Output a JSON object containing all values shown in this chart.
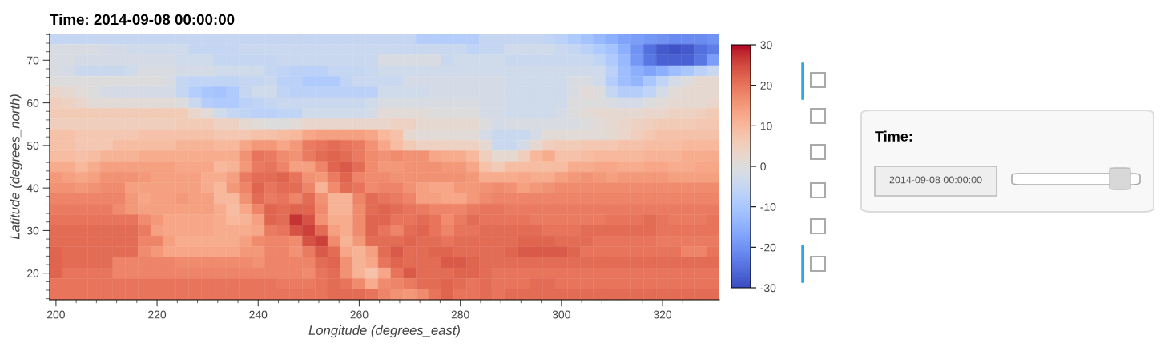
{
  "chart_data": {
    "type": "heatmap",
    "title": "Time: 2014-09-08 00:00:00",
    "xlabel": "Longitude (degrees_east)",
    "ylabel": "Latitude (degrees_north)",
    "x": [
      200,
      202.5,
      205,
      207.5,
      210,
      212.5,
      215,
      217.5,
      220,
      222.5,
      225,
      227.5,
      230,
      232.5,
      235,
      237.5,
      240,
      242.5,
      245,
      247.5,
      250,
      252.5,
      255,
      257.5,
      260,
      262.5,
      265,
      267.5,
      270,
      272.5,
      275,
      277.5,
      280,
      282.5,
      285,
      287.5,
      290,
      292.5,
      295,
      297.5,
      300,
      302.5,
      305,
      307.5,
      310,
      312.5,
      315,
      317.5,
      320,
      322.5,
      325,
      327.5,
      330
    ],
    "y": [
      75,
      72.5,
      70,
      67.5,
      65,
      62.5,
      60,
      57.5,
      55,
      52.5,
      50,
      47.5,
      45,
      42.5,
      40,
      37.5,
      35,
      32.5,
      30,
      27.5,
      25,
      22.5,
      20,
      17.5,
      15
    ],
    "xlim": [
      198.75,
      331.25
    ],
    "ylim": [
      13.75,
      76.25
    ],
    "xticks": [
      200,
      220,
      240,
      260,
      280,
      300,
      320
    ],
    "yticks": [
      20,
      30,
      40,
      50,
      60,
      70
    ],
    "clim": [
      -30,
      30
    ],
    "cticks": [
      -30,
      -20,
      -10,
      0,
      10,
      20,
      30
    ],
    "annotations": [
      "Time:",
      "2014-09-08 00:00:00"
    ],
    "cells": [
      [
        -5,
        -5,
        -5,
        -5,
        -5,
        -5,
        -5,
        -5,
        -5,
        -5,
        -5,
        -5,
        -5,
        -5,
        -5,
        -5,
        -5,
        -5,
        -5,
        -5,
        -5,
        -5,
        -5,
        -5,
        -5,
        -5,
        -5,
        -5,
        -5,
        -8,
        -8,
        -8,
        -8,
        -8,
        -5,
        -5,
        -5,
        -5,
        -5,
        -6,
        -7,
        -9,
        -11,
        -13,
        -15,
        -17,
        -18,
        -19,
        -20,
        -21,
        -21,
        -21,
        -20
      ],
      [
        -1,
        -1,
        -1,
        -1,
        -2,
        -2,
        -3,
        -3,
        -3,
        -3,
        -3,
        -5,
        -5,
        -5,
        -5,
        -4,
        -4,
        -4,
        -4,
        -4,
        -4,
        -4,
        -4,
        -4,
        -4,
        -4,
        -4,
        -4,
        -4,
        -4,
        -4,
        -4,
        -4,
        -6,
        -5,
        -5,
        -3,
        -3,
        -3,
        -3,
        -4,
        -5,
        -7,
        -9,
        -11,
        -15,
        -20,
        -25,
        -28,
        -29,
        -28,
        -25,
        -23
      ],
      [
        -1,
        -1,
        -2,
        -2,
        -2,
        -2,
        -2,
        -2,
        -2,
        -2,
        -3,
        -3,
        -3,
        -5,
        -5,
        -5,
        -5,
        -5,
        -4,
        -4,
        -4,
        -4,
        -4,
        -4,
        -4,
        -4,
        -1,
        -1,
        -1,
        -1,
        -1,
        -4,
        -3,
        -3,
        -3,
        -3,
        -4,
        -4,
        -4,
        -4,
        -4,
        -4,
        -4,
        -6,
        -9,
        -13,
        -19,
        -24,
        -27,
        -27,
        -27,
        -24,
        -18
      ],
      [
        -1,
        -2,
        -4,
        -4,
        -4,
        -4,
        -3,
        -1,
        -1,
        -1,
        -2,
        -2,
        -2,
        -3,
        -3,
        -3,
        -3,
        -5,
        -6,
        -7,
        -7,
        -7,
        -5,
        -5,
        -5,
        -4,
        -3,
        -3,
        -3,
        -3,
        -3,
        -3,
        -3,
        -3,
        -3,
        -3,
        -3,
        -3,
        -3,
        -3,
        -3,
        -3,
        -3,
        -3,
        -7,
        -12,
        -15,
        -17,
        -15,
        -12,
        -10,
        -7,
        -4
      ],
      [
        0,
        0,
        0,
        0,
        0,
        0,
        0,
        0,
        0,
        -1,
        -5,
        -6,
        -6,
        -6,
        -6,
        -5,
        -5,
        -4,
        -7,
        -7,
        -9,
        -9,
        -9,
        -6,
        -4,
        -4,
        -4,
        -4,
        -2,
        -2,
        -2,
        -2,
        -2,
        -2,
        -2,
        -2,
        -3,
        -3,
        -3,
        -3,
        -3,
        -1,
        -1,
        -3,
        -8,
        -12,
        -14,
        -10,
        -6,
        -2,
        0,
        2,
        2
      ],
      [
        3,
        2,
        1,
        0,
        -2,
        -2,
        -2,
        -2,
        -2,
        -2,
        -5,
        -8,
        -10,
        -11,
        -9,
        -5,
        -3,
        -3,
        -6,
        -7,
        -7,
        -7,
        -7,
        -7,
        -7,
        -7,
        -3,
        -3,
        -3,
        -3,
        -2,
        -2,
        -2,
        -2,
        -2,
        -2,
        -3,
        -3,
        -3,
        -3,
        -3,
        -1,
        1,
        0,
        -5,
        -8,
        -8,
        -6,
        -2,
        1,
        2,
        2,
        2
      ],
      [
        5,
        4,
        3,
        1,
        1,
        1,
        1,
        1,
        1,
        1,
        0,
        -4,
        -8,
        -9,
        -9,
        -7,
        -6,
        -5,
        -4,
        -4,
        -4,
        -4,
        -4,
        -4,
        -4,
        -3,
        -1,
        -1,
        -1,
        -1,
        -1,
        -1,
        -1,
        -1,
        -2,
        -2,
        -3,
        -3,
        -3,
        -3,
        -3,
        0,
        0,
        0,
        -1,
        -2,
        -2,
        0,
        1,
        2,
        2,
        2,
        3
      ],
      [
        6,
        6,
        6,
        6,
        6,
        6,
        6,
        6,
        6,
        6,
        6,
        3,
        1,
        -3,
        -5,
        -6,
        -7,
        -7,
        -6,
        -6,
        -3,
        -3,
        -3,
        -3,
        -3,
        -2,
        1,
        1,
        1,
        1,
        0,
        0,
        0,
        0,
        -2,
        -2,
        -3,
        -3,
        -3,
        -3,
        -2,
        0,
        1,
        2,
        2,
        2,
        2,
        3,
        3,
        4,
        4,
        5,
        6
      ],
      [
        5,
        5,
        5,
        5,
        5,
        5,
        5,
        5,
        5,
        5,
        6,
        6,
        6,
        4,
        4,
        2,
        1,
        0,
        0,
        1,
        3,
        3,
        3,
        3,
        3,
        3,
        3,
        4,
        4,
        2,
        2,
        2,
        2,
        2,
        0,
        -2,
        -1,
        -1,
        -1,
        -1,
        -1,
        -1,
        0,
        1,
        2,
        3,
        4,
        5,
        6,
        6,
        6,
        7,
        7
      ],
      [
        8,
        8,
        7,
        7,
        7,
        7,
        7,
        8,
        8,
        8,
        8,
        8,
        8,
        7,
        7,
        7,
        8,
        8,
        9,
        10,
        13,
        14,
        14,
        14,
        14,
        13,
        10,
        8,
        2,
        1,
        1,
        1,
        1,
        1,
        -2,
        -4,
        -4,
        -4,
        -2,
        1,
        1,
        1,
        1,
        1,
        2,
        3,
        5,
        7,
        8,
        8,
        8,
        8,
        8
      ],
      [
        8,
        8,
        7,
        7,
        7,
        9,
        9,
        9,
        9,
        9,
        11,
        11,
        11,
        10,
        10,
        13,
        15,
        15,
        13,
        15,
        19,
        20,
        21,
        20,
        19,
        16,
        13,
        9,
        6,
        4,
        4,
        4,
        4,
        4,
        2,
        -4,
        -4,
        -2,
        2,
        5,
        6,
        6,
        7,
        7,
        7,
        8,
        8,
        9,
        9,
        9,
        10,
        10,
        10
      ],
      [
        9,
        9,
        8,
        9,
        11,
        11,
        11,
        12,
        12,
        12,
        12,
        12,
        12,
        12,
        12,
        16,
        20,
        19,
        17,
        16,
        19,
        21,
        22,
        21,
        19,
        17,
        16,
        17,
        16,
        16,
        13,
        12,
        12,
        10,
        5,
        2,
        2,
        5,
        10,
        12,
        8,
        8,
        9,
        10,
        10,
        10,
        10,
        11,
        11,
        11,
        12,
        12,
        12
      ],
      [
        12,
        12,
        10,
        12,
        14,
        14,
        14,
        14,
        14,
        14,
        13,
        13,
        13,
        10,
        11,
        15,
        19,
        20,
        18,
        14,
        14,
        18,
        22,
        23,
        21,
        17,
        15,
        15,
        16,
        16,
        16,
        15,
        15,
        13,
        8,
        6,
        9,
        9,
        9,
        9,
        9,
        12,
        12,
        13,
        13,
        12,
        12,
        13,
        13,
        12,
        12,
        13,
        13
      ],
      [
        15,
        14,
        13,
        14,
        16,
        16,
        16,
        15,
        14,
        14,
        14,
        14,
        12,
        12,
        14,
        19,
        21,
        21,
        22,
        20,
        16,
        15,
        19,
        22,
        18,
        17,
        17,
        16,
        16,
        16,
        16,
        16,
        16,
        15,
        12,
        12,
        12,
        13,
        12,
        12,
        14,
        15,
        16,
        15,
        14,
        15,
        15,
        15,
        15,
        14,
        14,
        14,
        14
      ],
      [
        16,
        16,
        15,
        16,
        17,
        17,
        14,
        14,
        14,
        14,
        14,
        14,
        12,
        10,
        15,
        18,
        22,
        20,
        21,
        21,
        18,
        11,
        17,
        21,
        20,
        17,
        18,
        18,
        16,
        14,
        13,
        13,
        15,
        15,
        16,
        17,
        16,
        14,
        15,
        16,
        17,
        17,
        17,
        17,
        17,
        17,
        17,
        17,
        17,
        17,
        17,
        17,
        17
      ],
      [
        18,
        18,
        18,
        18,
        18,
        18,
        15,
        13,
        14,
        14,
        15,
        14,
        14,
        10,
        10,
        16,
        21,
        19,
        20,
        18,
        21,
        16,
        11,
        11,
        18,
        21,
        20,
        19,
        18,
        14,
        14,
        13,
        13,
        15,
        17,
        18,
        18,
        18,
        18,
        18,
        18,
        18,
        18,
        18,
        18,
        18,
        18,
        18,
        18,
        18,
        18,
        18,
        18
      ],
      [
        19,
        19,
        19,
        19,
        19,
        17,
        15,
        14,
        14,
        14,
        14,
        14,
        14,
        12,
        9,
        13,
        18,
        22,
        21,
        22,
        22,
        17,
        11,
        11,
        17,
        21,
        22,
        21,
        20,
        19,
        18,
        18,
        18,
        19,
        20,
        20,
        19,
        19,
        19,
        19,
        19,
        19,
        19,
        19,
        19,
        19,
        19,
        19,
        19,
        19,
        19,
        19,
        19
      ],
      [
        20,
        20,
        20,
        20,
        20,
        20,
        20,
        17,
        15,
        13,
        13,
        13,
        13,
        12,
        10,
        11,
        14,
        22,
        21,
        27,
        24,
        16,
        12,
        12,
        17,
        22,
        22,
        20,
        20,
        21,
        20,
        17,
        19,
        21,
        20,
        20,
        20,
        20,
        19,
        19,
        19,
        19,
        19,
        19,
        20,
        20,
        20,
        21,
        20,
        19,
        19,
        19,
        20
      ],
      [
        21,
        21,
        21,
        21,
        21,
        21,
        21,
        19,
        14,
        13,
        13,
        13,
        13,
        12,
        12,
        12,
        13,
        19,
        20,
        24,
        26,
        21,
        14,
        12,
        17,
        22,
        20,
        18,
        21,
        22,
        20,
        18,
        20,
        20,
        21,
        21,
        21,
        21,
        21,
        20,
        20,
        20,
        21,
        21,
        21,
        21,
        21,
        21,
        20,
        20,
        20,
        20,
        20
      ],
      [
        21,
        21,
        21,
        21,
        21,
        21,
        21,
        18,
        18,
        14,
        12,
        12,
        12,
        12,
        12,
        14,
        17,
        18,
        18,
        17,
        24,
        26,
        17,
        11,
        15,
        21,
        21,
        21,
        22,
        21,
        21,
        20,
        21,
        21,
        21,
        21,
        21,
        22,
        22,
        22,
        21,
        21,
        21,
        20,
        20,
        20,
        20,
        20,
        19,
        19,
        19,
        19,
        19
      ],
      [
        22,
        21,
        21,
        21,
        21,
        21,
        21,
        17,
        15,
        13,
        13,
        13,
        13,
        13,
        13,
        15,
        15,
        18,
        18,
        16,
        19,
        23,
        21,
        13,
        11,
        14,
        21,
        23,
        21,
        21,
        22,
        22,
        21,
        21,
        21,
        21,
        22,
        23,
        23,
        23,
        23,
        22,
        20,
        20,
        20,
        20,
        20,
        20,
        20,
        20,
        18,
        18,
        20
      ],
      [
        22,
        21,
        21,
        21,
        21,
        18,
        18,
        18,
        18,
        18,
        17,
        17,
        17,
        17,
        17,
        17,
        16,
        18,
        18,
        18,
        18,
        21,
        22,
        16,
        11,
        13,
        20,
        22,
        21,
        21,
        21,
        23,
        23,
        22,
        21,
        21,
        21,
        21,
        21,
        21,
        21,
        21,
        21,
        21,
        21,
        21,
        21,
        21,
        21,
        21,
        21,
        21,
        21
      ],
      [
        22,
        20,
        20,
        20,
        20,
        18,
        18,
        18,
        18,
        18,
        18,
        18,
        18,
        18,
        18,
        18,
        18,
        18,
        18,
        18,
        17,
        20,
        21,
        16,
        11,
        8,
        13,
        20,
        23,
        21,
        21,
        21,
        22,
        22,
        21,
        20,
        20,
        20,
        20,
        20,
        20,
        20,
        20,
        20,
        20,
        20,
        20,
        20,
        20,
        20,
        20,
        20,
        20
      ],
      [
        20,
        20,
        20,
        20,
        20,
        20,
        20,
        20,
        20,
        20,
        20,
        20,
        20,
        20,
        20,
        20,
        20,
        20,
        19,
        19,
        19,
        20,
        21,
        20,
        17,
        12,
        17,
        18,
        19,
        21,
        21,
        22,
        21,
        20,
        21,
        20,
        20,
        20,
        21,
        21,
        20,
        20,
        20,
        20,
        20,
        20,
        20,
        20,
        20,
        20,
        20,
        20,
        20
      ],
      [
        20,
        20,
        20,
        20,
        20,
        20,
        20,
        20,
        20,
        20,
        20,
        20,
        20,
        20,
        20,
        20,
        20,
        20,
        20,
        20,
        20,
        20,
        21,
        21,
        21,
        20,
        18,
        16,
        15,
        17,
        20,
        22,
        20,
        20,
        21,
        20,
        21,
        21,
        21,
        21,
        21,
        21,
        21,
        21,
        21,
        21,
        21,
        21,
        21,
        21,
        21,
        21,
        21
      ]
    ]
  }
}
